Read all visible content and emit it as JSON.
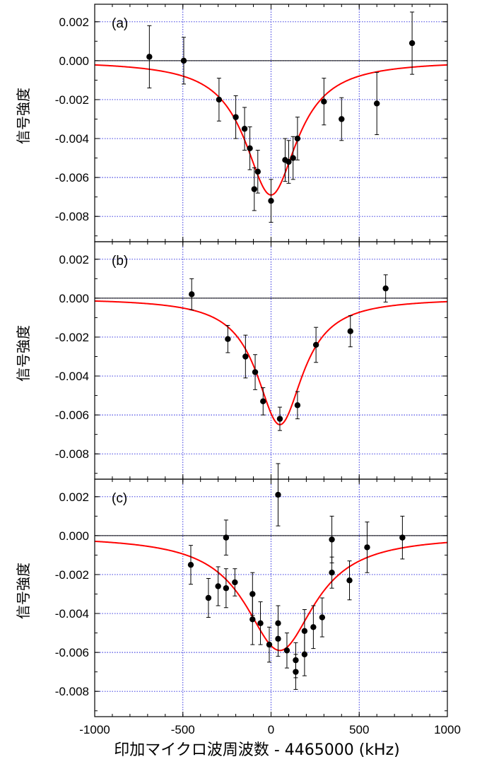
{
  "chart_data": {
    "type": "scatter",
    "layout": "stacked-panels-shared-x",
    "xlabel": "印加マイクロ波周波数 - 4465000 (kHz)",
    "xlim": [
      -1000,
      1000
    ],
    "xticks": [
      -1000,
      -500,
      0,
      500,
      1000
    ],
    "xtick_labels": [
      "-1000",
      "-500",
      "0",
      "500",
      "1000"
    ],
    "ylim": [
      -0.0093,
      0.0029
    ],
    "yticks": [
      0.002,
      0.0,
      -0.002,
      -0.004,
      -0.006,
      -0.008
    ],
    "ytick_labels": [
      "0.002",
      "0.000",
      "-0.002",
      "-0.004",
      "-0.006",
      "-0.008"
    ],
    "grid": true,
    "grid_style": "dotted-blue",
    "fit_color": "#ff0000",
    "point_color": "#000000",
    "panels": [
      {
        "label": "(a)",
        "ylabel": "信号強度",
        "series": [
          {
            "kind": "points-with-errorbars",
            "points": [
              {
                "x": -690,
                "y": 0.0002,
                "err": 0.0016
              },
              {
                "x": -495,
                "y": 0.0,
                "err": 0.0012
              },
              {
                "x": -295,
                "y": -0.002,
                "err": 0.0011
              },
              {
                "x": -200,
                "y": -0.0029,
                "err": 0.0011
              },
              {
                "x": -150,
                "y": -0.0035,
                "err": 0.0011
              },
              {
                "x": -120,
                "y": -0.0045,
                "err": 0.0011
              },
              {
                "x": -95,
                "y": -0.0066,
                "err": 0.0011
              },
              {
                "x": -75,
                "y": -0.0057,
                "err": 0.0011
              },
              {
                "x": 0,
                "y": -0.0072,
                "err": 0.0011
              },
              {
                "x": 80,
                "y": -0.0051,
                "err": 0.0011
              },
              {
                "x": 100,
                "y": -0.0052,
                "err": 0.0011
              },
              {
                "x": 125,
                "y": -0.005,
                "err": 0.0011
              },
              {
                "x": 150,
                "y": -0.004,
                "err": 0.0011
              },
              {
                "x": 300,
                "y": -0.0021,
                "err": 0.0012
              },
              {
                "x": 400,
                "y": -0.003,
                "err": 0.0011
              },
              {
                "x": 600,
                "y": -0.0022,
                "err": 0.0016
              },
              {
                "x": 800,
                "y": 0.0009,
                "err": 0.0016
              }
            ]
          },
          {
            "kind": "lorentzian-fit",
            "center": 0,
            "amplitude": -0.0069,
            "hwhm": 180
          }
        ]
      },
      {
        "label": "(b)",
        "ylabel": "信号強度",
        "series": [
          {
            "kind": "points-with-errorbars",
            "points": [
              {
                "x": -450,
                "y": 0.0002,
                "err": 0.0008
              },
              {
                "x": -245,
                "y": -0.0021,
                "err": 0.0007
              },
              {
                "x": -145,
                "y": -0.003,
                "err": 0.0011
              },
              {
                "x": -90,
                "y": -0.0038,
                "err": 0.0009
              },
              {
                "x": -45,
                "y": -0.0053,
                "err": 0.0007
              },
              {
                "x": 50,
                "y": -0.0062,
                "err": 0.0006
              },
              {
                "x": 150,
                "y": -0.0055,
                "err": 0.0007
              },
              {
                "x": 255,
                "y": -0.0024,
                "err": 0.0009
              },
              {
                "x": 450,
                "y": -0.0017,
                "err": 0.0008
              },
              {
                "x": 650,
                "y": 0.0005,
                "err": 0.0007
              }
            ]
          },
          {
            "kind": "lorentzian-fit",
            "center": 50,
            "amplitude": -0.0065,
            "hwhm": 160
          }
        ]
      },
      {
        "label": "(c)",
        "ylabel": "信号強度",
        "series": [
          {
            "kind": "points-with-errorbars",
            "points": [
              {
                "x": -455,
                "y": -0.0015,
                "err": 0.001
              },
              {
                "x": -355,
                "y": -0.0032,
                "err": 0.001
              },
              {
                "x": -300,
                "y": -0.0026,
                "err": 0.001
              },
              {
                "x": -255,
                "y": -0.0001,
                "err": 0.0009
              },
              {
                "x": -255,
                "y": -0.0027,
                "err": 0.001
              },
              {
                "x": -205,
                "y": -0.0024,
                "err": 0.0007
              },
              {
                "x": -105,
                "y": -0.003,
                "err": 0.0011
              },
              {
                "x": -105,
                "y": -0.0043,
                "err": 0.0013
              },
              {
                "x": -60,
                "y": -0.0045,
                "err": 0.0011
              },
              {
                "x": -10,
                "y": -0.0056,
                "err": 0.0009
              },
              {
                "x": 40,
                "y": 0.0021,
                "err": 0.0016
              },
              {
                "x": 40,
                "y": -0.0045,
                "err": 0.0009
              },
              {
                "x": 40,
                "y": -0.0053,
                "err": 0.0009
              },
              {
                "x": 90,
                "y": -0.0059,
                "err": 0.0009
              },
              {
                "x": 140,
                "y": -0.007,
                "err": 0.0009
              },
              {
                "x": 140,
                "y": -0.0064,
                "err": 0.0009
              },
              {
                "x": 190,
                "y": -0.0049,
                "err": 0.0011
              },
              {
                "x": 190,
                "y": -0.0061,
                "err": 0.0011
              },
              {
                "x": 240,
                "y": -0.0047,
                "err": 0.0011
              },
              {
                "x": 290,
                "y": -0.0042,
                "err": 0.001
              },
              {
                "x": 345,
                "y": -0.0019,
                "err": 0.0008
              },
              {
                "x": 345,
                "y": -0.0002,
                "err": 0.0012
              },
              {
                "x": 445,
                "y": -0.0023,
                "err": 0.001
              },
              {
                "x": 545,
                "y": -0.0006,
                "err": 0.0013
              },
              {
                "x": 745,
                "y": -0.0001,
                "err": 0.0011
              }
            ]
          },
          {
            "kind": "lorentzian-fit",
            "center": 50,
            "amplitude": -0.0059,
            "hwhm": 240
          }
        ]
      }
    ]
  }
}
